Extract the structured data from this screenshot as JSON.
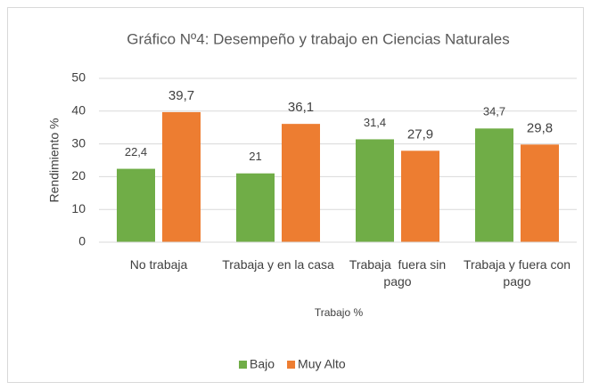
{
  "chart_data": {
    "type": "bar",
    "title": "Gráfico Nº4: Desempeño y trabajo en Ciencias Naturales",
    "y_label": "Rendimiento %",
    "x_label": "Trabajo %",
    "categories": [
      "No trabaja",
      "Trabaja y en la casa",
      "Trabaja  fuera sin pago",
      "Trabaja y fuera con pago"
    ],
    "series": [
      {
        "name": "Bajo",
        "color": "#70ad47",
        "values": [
          22.4,
          21,
          31.4,
          34.7
        ],
        "value_labels": [
          "22,4",
          "21",
          "31,4",
          "34,7"
        ]
      },
      {
        "name": "Muy Alto",
        "color": "#ed7d31",
        "values": [
          39.7,
          36.1,
          27.9,
          29.8
        ],
        "value_labels": [
          "39,7",
          "36,1",
          "27,9",
          "29,8"
        ]
      }
    ],
    "ylim": [
      0,
      50
    ],
    "yticks": [
      0,
      10,
      20,
      30,
      40,
      50
    ],
    "grid": true,
    "legend": "bottom"
  }
}
